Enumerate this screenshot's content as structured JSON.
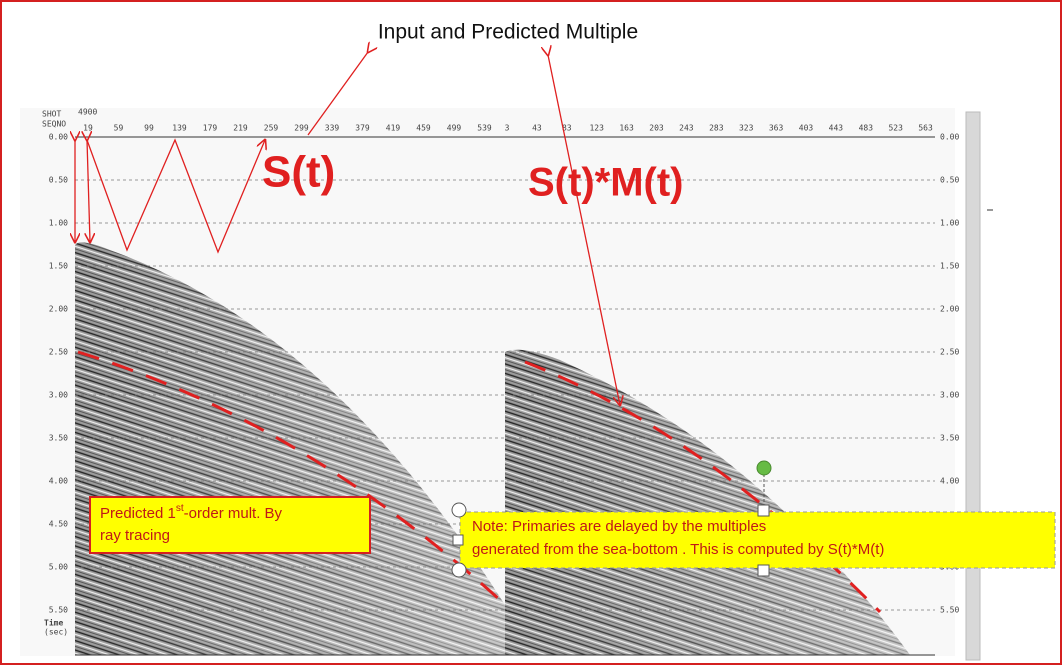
{
  "title": "Input and Predicted Multiple",
  "header": {
    "shot_label": "SHOT",
    "shot_value": "4900",
    "seqno_label": "SEQNO"
  },
  "left_panel": {
    "label": "S(t)",
    "traces": [
      19,
      59,
      99,
      139,
      179,
      219,
      259,
      299,
      339,
      379,
      419,
      459,
      499,
      539
    ]
  },
  "right_panel": {
    "label": "S(t)*M(t)",
    "traces": [
      3,
      43,
      83,
      123,
      163,
      203,
      243,
      283,
      323,
      363,
      403,
      443,
      483,
      523,
      563
    ]
  },
  "time_axis": {
    "ticks": [
      "0.00",
      "0.50",
      "1.00",
      "1.50",
      "2.00",
      "2.50",
      "3.00",
      "3.50",
      "4.00",
      "4.50",
      "5.00",
      "5.50"
    ],
    "label": "Time",
    "unit": "(sec)"
  },
  "annotations": [
    {
      "line1": [
        "Predicted 1",
        "st",
        "-order mult. By"
      ],
      "line2": "ray tracing"
    },
    {
      "line1": "Note: Primaries are delayed by the multiples",
      "line2": "generated from the sea-bottom . This is computed by S(t)*M(t)"
    }
  ]
}
